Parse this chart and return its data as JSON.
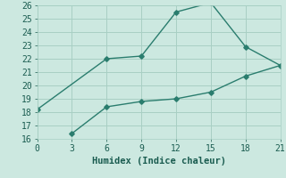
{
  "line1_x": [
    0,
    6,
    9,
    12,
    15,
    18,
    21
  ],
  "line1_y": [
    18.2,
    22.0,
    22.2,
    25.5,
    26.2,
    22.9,
    21.5
  ],
  "line2_x": [
    3,
    6,
    9,
    12,
    15,
    18,
    21
  ],
  "line2_y": [
    16.4,
    18.4,
    18.8,
    19.0,
    19.5,
    20.7,
    21.5
  ],
  "line_color": "#2a7d6e",
  "marker": "D",
  "marker_size": 2.8,
  "xlabel": "Humidex (Indice chaleur)",
  "xlim": [
    0,
    21
  ],
  "ylim": [
    16,
    26
  ],
  "xticks": [
    0,
    3,
    6,
    9,
    12,
    15,
    18,
    21
  ],
  "yticks": [
    16,
    17,
    18,
    19,
    20,
    21,
    22,
    23,
    24,
    25,
    26
  ],
  "bg_color": "#cce8e0",
  "grid_color": "#a8cfc4",
  "font_color": "#1a5c50",
  "xlabel_fontsize": 7.5,
  "tick_fontsize": 7,
  "linewidth": 1.0
}
